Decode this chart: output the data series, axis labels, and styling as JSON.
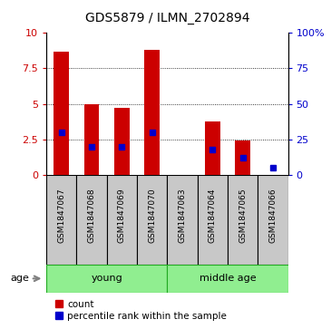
{
  "title": "GDS5879 / ILMN_2702894",
  "samples": [
    "GSM1847067",
    "GSM1847068",
    "GSM1847069",
    "GSM1847070",
    "GSM1847063",
    "GSM1847064",
    "GSM1847065",
    "GSM1847066"
  ],
  "counts": [
    8.7,
    5.0,
    4.7,
    8.8,
    0.02,
    3.8,
    2.4,
    0.02
  ],
  "percentiles": [
    30,
    20,
    20,
    30,
    0,
    18,
    12,
    5
  ],
  "groups": [
    {
      "label": "young",
      "start": 0,
      "end": 3
    },
    {
      "label": "middle age",
      "start": 4,
      "end": 7
    }
  ],
  "bar_color_red": "#cc0000",
  "bar_color_blue": "#0000cc",
  "ylim_left": [
    0,
    10
  ],
  "ylim_right": [
    0,
    100
  ],
  "yticks_left": [
    0,
    2.5,
    5,
    7.5,
    10
  ],
  "ytick_labels_left": [
    "0",
    "2.5",
    "5",
    "7.5",
    "10"
  ],
  "yticks_right": [
    0,
    25,
    50,
    75,
    100
  ],
  "ytick_labels_right": [
    "0",
    "25",
    "50",
    "75",
    "100%"
  ],
  "bar_width": 0.5,
  "age_label": "age",
  "legend_count": "count",
  "legend_percentile": "percentile rank within the sample",
  "background_color": "#ffffff",
  "bar_bg_color": "#c8c8c8",
  "green_color": "#90EE90",
  "title_fontsize": 10,
  "tick_fontsize": 8,
  "label_fontsize": 7.5
}
